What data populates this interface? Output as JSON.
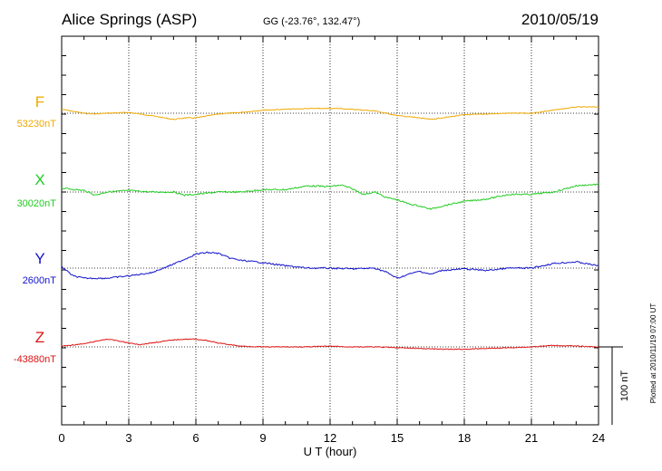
{
  "header": {
    "station": "Alice Springs (ASP)",
    "coords": "GG (-23.76°, 132.47°)",
    "date": "2010/05/19"
  },
  "side_note": "Plotted at 2010/11/19 07:00 UT",
  "scale_label": "100 nT",
  "chart_data": {
    "type": "line",
    "xlabel": "U T (hour)",
    "xlim": [
      0,
      24
    ],
    "xticks": [
      "0",
      "3",
      "6",
      "9",
      "12",
      "15",
      "18",
      "21",
      "24"
    ],
    "scale_bar_nT": 100,
    "grid": true,
    "series": [
      {
        "name": "F",
        "baseline_label": "53230nT",
        "color": "#f0a800",
        "x": [
          0,
          1,
          1.5,
          2,
          3,
          4,
          5,
          5.5,
          6,
          7,
          8,
          9,
          10,
          11,
          12,
          12.5,
          13,
          14,
          15,
          16,
          16.5,
          17,
          18,
          19,
          20,
          21,
          22,
          23,
          24
        ],
        "offset_nT": [
          5,
          0,
          -1,
          0,
          1,
          -3,
          -8,
          -6,
          -6,
          -1,
          1,
          4,
          5,
          6,
          6,
          6,
          5,
          3,
          -3,
          -6,
          -8,
          -6,
          -2,
          -1,
          0,
          0,
          4,
          8,
          8
        ]
      },
      {
        "name": "X",
        "baseline_label": "30020nT",
        "color": "#22cc22",
        "x": [
          0,
          1,
          1.5,
          2,
          3,
          4,
          4.5,
          5,
          5.5,
          6,
          7,
          8,
          9,
          10,
          11,
          12,
          12.5,
          13,
          13.5,
          14,
          14.5,
          15,
          15.5,
          16,
          16.5,
          17,
          18,
          19,
          20,
          21,
          22,
          23,
          24
        ],
        "offset_nT": [
          5,
          2,
          -4,
          0,
          2,
          0,
          0,
          0,
          -4,
          -3,
          0,
          0,
          3,
          3,
          8,
          7,
          9,
          4,
          -3,
          0,
          -7,
          -10,
          -15,
          -18,
          -22,
          -18,
          -12,
          -9,
          -3,
          -3,
          0,
          8,
          10
        ]
      },
      {
        "name": "Y",
        "baseline_label": "2600nT",
        "color": "#1111cc",
        "x": [
          0,
          0.5,
          1,
          2,
          3,
          4,
          5,
          6,
          6.5,
          7,
          7.5,
          8,
          9,
          10,
          11,
          12,
          13,
          14,
          14.5,
          15,
          15.5,
          16,
          16.5,
          17,
          18,
          19,
          20,
          21,
          22,
          23,
          24
        ],
        "offset_nT": [
          2,
          -10,
          -13,
          -13,
          -10,
          -6,
          5,
          18,
          20,
          19,
          13,
          10,
          7,
          3,
          0,
          0,
          -1,
          0,
          -5,
          -13,
          -8,
          -4,
          -8,
          -3,
          -1,
          -3,
          0,
          0,
          6,
          8,
          3
        ]
      },
      {
        "name": "Z",
        "baseline_label": "-43880nT",
        "color": "#dd1111",
        "x": [
          0,
          1,
          2,
          2.5,
          3,
          3.5,
          4,
          5,
          5.5,
          6,
          6.5,
          7,
          8,
          9,
          10,
          11,
          12,
          13,
          14,
          15,
          16,
          17,
          18,
          19,
          20,
          21,
          22,
          23,
          24
        ],
        "offset_nT": [
          1,
          4,
          10,
          8,
          5,
          3,
          5,
          9,
          10,
          10,
          8,
          5,
          1,
          0,
          0,
          0,
          1,
          0,
          0,
          -1,
          -2,
          -3,
          -3,
          -2,
          -1,
          0,
          2,
          1,
          0
        ]
      }
    ]
  }
}
